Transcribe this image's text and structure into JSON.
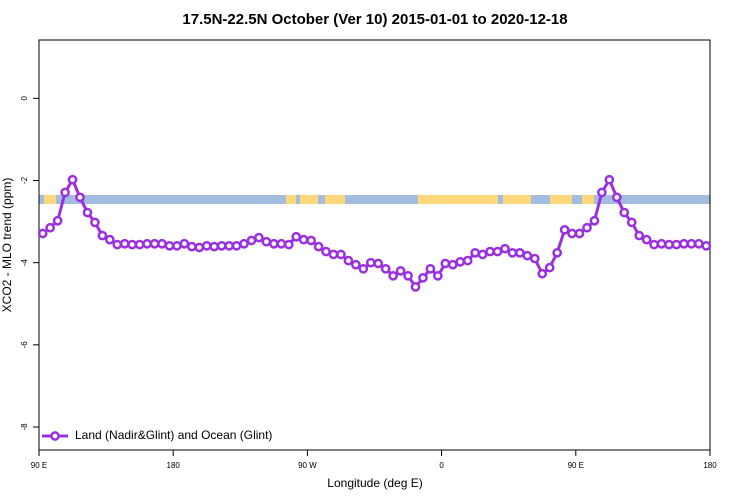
{
  "chart_data": {
    "type": "line",
    "title": "17.5N-22.5N October (Ver 10)   2015-01-01 to 2020-12-18",
    "xlabel": "Longitude (deg E)",
    "ylabel": "XCO2 - MLO trend (ppm)",
    "xlim": [
      90,
      540
    ],
    "ylim": [
      -8.56,
      1.42
    ],
    "xticks": [
      {
        "value": 90,
        "label": "90 E"
      },
      180,
      {
        "value": 270,
        "label": "90 W"
      },
      {
        "value": 360,
        "label": "0"
      },
      {
        "value": 450,
        "label": "90 E"
      },
      {
        "value": 540,
        "label": "180"
      }
    ],
    "yticks": [
      0,
      -2,
      -4,
      -6,
      -8
    ],
    "legend": "bottom-left",
    "x": [
      92.5,
      97.5,
      102.5,
      107.5,
      112.5,
      117.5,
      122.5,
      127.5,
      132.5,
      137.5,
      142.5,
      147.5,
      152.5,
      157.5,
      162.5,
      167.5,
      172.5,
      177.5,
      182.5,
      187.5,
      192.5,
      197.5,
      202.5,
      207.5,
      212.5,
      217.5,
      222.5,
      227.5,
      232.5,
      237.5,
      242.5,
      247.5,
      252.5,
      257.5,
      262.5,
      267.5,
      272.5,
      277.5,
      282.5,
      287.5,
      292.5,
      297.5,
      302.5,
      307.5,
      312.5,
      317.5,
      322.5,
      327.5,
      332.5,
      337.5,
      342.5,
      347.5,
      352.5,
      357.5,
      362.5,
      367.5,
      372.5,
      377.5,
      382.5,
      387.5,
      392.5,
      397.5,
      402.5,
      407.5,
      412.5,
      417.5,
      422.5,
      427.5,
      432.5,
      437.5,
      442.5,
      447.5,
      452.5,
      457.5,
      462.5,
      467.5,
      472.5,
      477.5,
      482.5,
      487.5,
      492.5,
      497.5,
      502.5,
      507.5,
      512.5,
      517.5,
      522.5,
      527.5,
      532.5,
      537.5
    ],
    "series": [
      {
        "name": "Land (Nadir&Glint) and Ocean (Glint)",
        "color": "#9b30e0",
        "values": [
          -3.29,
          -3.15,
          -2.98,
          -2.29,
          -1.98,
          -2.41,
          -2.78,
          -3.02,
          -3.34,
          -3.44,
          -3.56,
          -3.54,
          -3.56,
          -3.56,
          -3.54,
          -3.54,
          -3.54,
          -3.59,
          -3.59,
          -3.54,
          -3.61,
          -3.63,
          -3.59,
          -3.61,
          -3.59,
          -3.59,
          -3.59,
          -3.54,
          -3.46,
          -3.39,
          -3.49,
          -3.54,
          -3.54,
          -3.56,
          -3.37,
          -3.44,
          -3.46,
          -3.61,
          -3.73,
          -3.8,
          -3.8,
          -3.95,
          -4.05,
          -4.15,
          -4.0,
          -4.02,
          -4.15,
          -4.32,
          -4.2,
          -4.32,
          -4.59,
          -4.37,
          -4.15,
          -4.32,
          -4.02,
          -4.05,
          -3.98,
          -3.95,
          -3.76,
          -3.8,
          -3.73,
          -3.73,
          -3.66,
          -3.76,
          -3.76,
          -3.83,
          -3.9,
          -4.27,
          -4.12,
          -3.76,
          -3.2,
          -3.29,
          -3.29,
          -3.15,
          -2.98,
          -2.29,
          -1.98,
          -2.41,
          -2.78,
          -3.02,
          -3.34,
          -3.44,
          -3.56,
          -3.54,
          -3.56,
          -3.56,
          -3.54,
          -3.54,
          -3.54,
          -3.59
        ]
      }
    ]
  }
}
